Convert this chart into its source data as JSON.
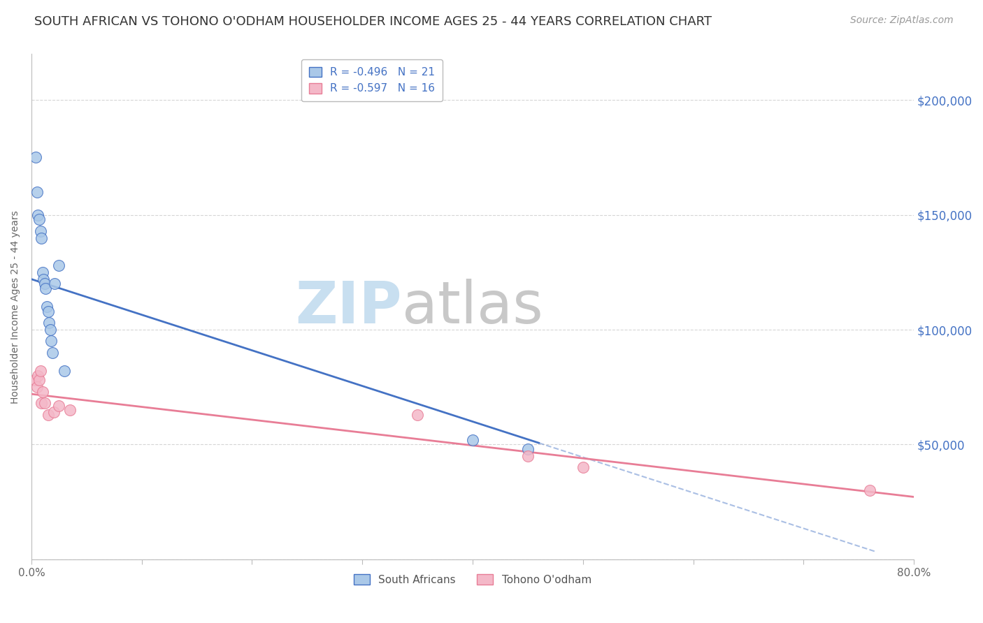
{
  "title": "SOUTH AFRICAN VS TOHONO O'ODHAM HOUSEHOLDER INCOME AGES 25 - 44 YEARS CORRELATION CHART",
  "source": "Source: ZipAtlas.com",
  "ylabel": "Householder Income Ages 25 - 44 years",
  "xlim": [
    0.0,
    0.8
  ],
  "ylim": [
    0,
    220000
  ],
  "yticks": [
    0,
    50000,
    100000,
    150000,
    200000
  ],
  "ytick_labels": [
    "",
    "$50,000",
    "$100,000",
    "$150,000",
    "$200,000"
  ],
  "xticks": [
    0.0,
    0.1,
    0.2,
    0.3,
    0.4,
    0.5,
    0.6,
    0.7,
    0.8
  ],
  "xtick_labels": [
    "0.0%",
    "",
    "",
    "",
    "",
    "",
    "",
    "",
    "80.0%"
  ],
  "blue_x": [
    0.004,
    0.005,
    0.006,
    0.007,
    0.008,
    0.009,
    0.01,
    0.011,
    0.012,
    0.013,
    0.014,
    0.015,
    0.016,
    0.017,
    0.018,
    0.019,
    0.021,
    0.025,
    0.03,
    0.4,
    0.45
  ],
  "blue_y": [
    175000,
    160000,
    150000,
    148000,
    143000,
    140000,
    125000,
    122000,
    120000,
    118000,
    110000,
    108000,
    103000,
    100000,
    95000,
    90000,
    120000,
    128000,
    82000,
    52000,
    48000
  ],
  "pink_x": [
    0.003,
    0.005,
    0.006,
    0.007,
    0.008,
    0.009,
    0.01,
    0.012,
    0.015,
    0.02,
    0.025,
    0.035,
    0.35,
    0.45,
    0.5,
    0.76
  ],
  "pink_y": [
    78000,
    75000,
    80000,
    78000,
    82000,
    68000,
    73000,
    68000,
    63000,
    64000,
    67000,
    65000,
    63000,
    45000,
    40000,
    30000
  ],
  "blue_color": "#aac8e8",
  "pink_color": "#f4b8c8",
  "blue_line_color": "#4472c4",
  "pink_line_color": "#e87d96",
  "blue_r": "-0.496",
  "blue_n": "21",
  "pink_r": "-0.597",
  "pink_n": "16",
  "legend_label_blue": "South Africans",
  "legend_label_pink": "Tohono O'odham",
  "right_axis_color": "#4472c4",
  "watermark": "ZIPatlas",
  "watermark_blue": "#c8dff0",
  "watermark_atlas": "#c8c8c8",
  "title_fontsize": 13,
  "axis_label_fontsize": 10,
  "tick_fontsize": 11,
  "source_fontsize": 10,
  "blue_line_x_solid_end": 0.46,
  "blue_line_x_dash_end": 0.765,
  "pink_line_x_end": 0.8,
  "blue_line_intercept": 122000,
  "blue_line_slope": -155000,
  "pink_line_intercept": 72000,
  "pink_line_slope": -56000
}
